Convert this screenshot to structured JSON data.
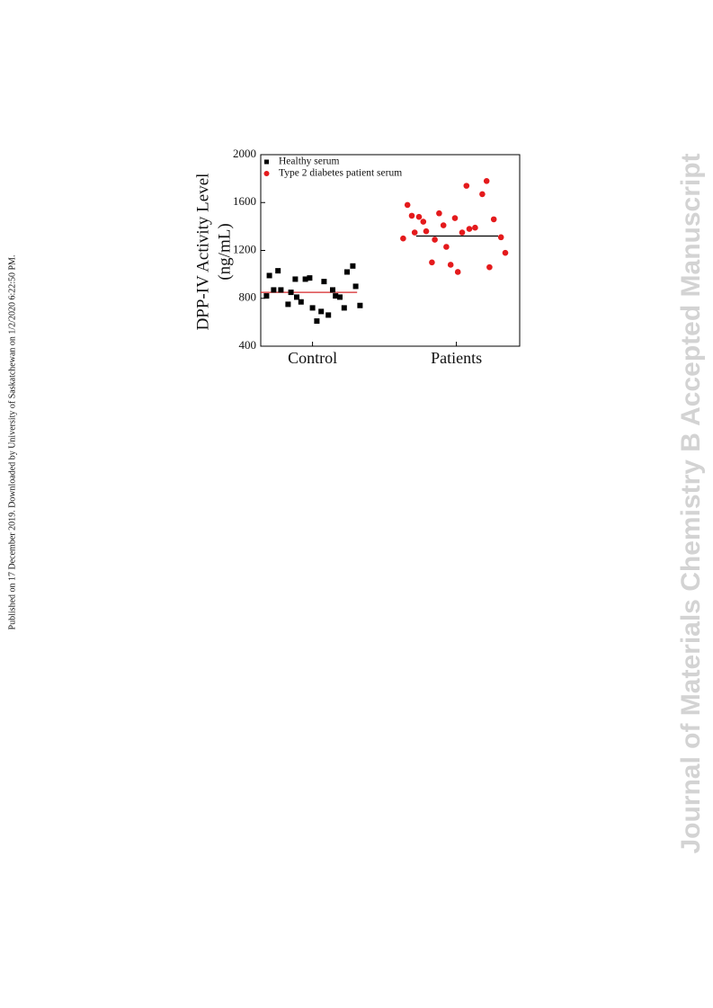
{
  "side_note": "Published on 17 December 2019. Downloaded by University of Saskatchewan on 1/2/2020 6:22:50 PM.",
  "watermark": "Journal of Materials Chemistry B Accepted Manuscript",
  "chart_data": {
    "type": "scatter",
    "ylabel": [
      "DPP-IV  Activity Level",
      "(ng/mL)"
    ],
    "xlim": [
      0.64,
      2.44
    ],
    "xticks": [
      {
        "value": 1,
        "label": "Control"
      },
      {
        "value": 2,
        "label": "Patients"
      }
    ],
    "ylim": [
      400,
      2000
    ],
    "yticks": [
      400,
      800,
      1200,
      1600,
      2000
    ],
    "legend": "top-left",
    "series": [
      {
        "name": "Healthy serum",
        "color": "#000000",
        "marker": "square",
        "x": [
          0.68,
          0.7,
          0.73,
          0.76,
          0.78,
          0.83,
          0.85,
          0.88,
          0.89,
          0.92,
          0.95,
          0.98,
          1.0,
          1.03,
          1.06,
          1.08,
          1.11,
          1.14,
          1.16,
          1.19,
          1.22,
          1.24,
          1.28,
          1.3,
          1.33
        ],
        "values": [
          820,
          990,
          870,
          1030,
          870,
          750,
          850,
          960,
          810,
          770,
          960,
          970,
          720,
          610,
          690,
          940,
          660,
          870,
          820,
          810,
          720,
          1020,
          1070,
          900,
          740
        ]
      },
      {
        "name": "Type 2 diabetes patient serum",
        "color": "#e41a1c",
        "marker": "circle",
        "x": [
          1.63,
          1.66,
          1.69,
          1.71,
          1.74,
          1.77,
          1.79,
          1.83,
          1.85,
          1.88,
          1.91,
          1.93,
          1.96,
          1.99,
          2.01,
          2.04,
          2.07,
          2.09,
          2.13,
          2.18,
          2.21,
          2.23,
          2.26,
          2.31,
          2.34
        ],
        "values": [
          1300,
          1580,
          1490,
          1350,
          1480,
          1440,
          1360,
          1100,
          1290,
          1510,
          1410,
          1230,
          1080,
          1470,
          1020,
          1350,
          1740,
          1380,
          1390,
          1670,
          1780,
          1060,
          1460,
          1310,
          1180
        ]
      }
    ],
    "mean_lines": [
      {
        "color": "#d62728",
        "value": 850,
        "x": [
          0.64,
          1.31
        ]
      },
      {
        "color": "#000000",
        "value": 1320,
        "x": [
          1.72,
          2.29
        ]
      }
    ]
  }
}
